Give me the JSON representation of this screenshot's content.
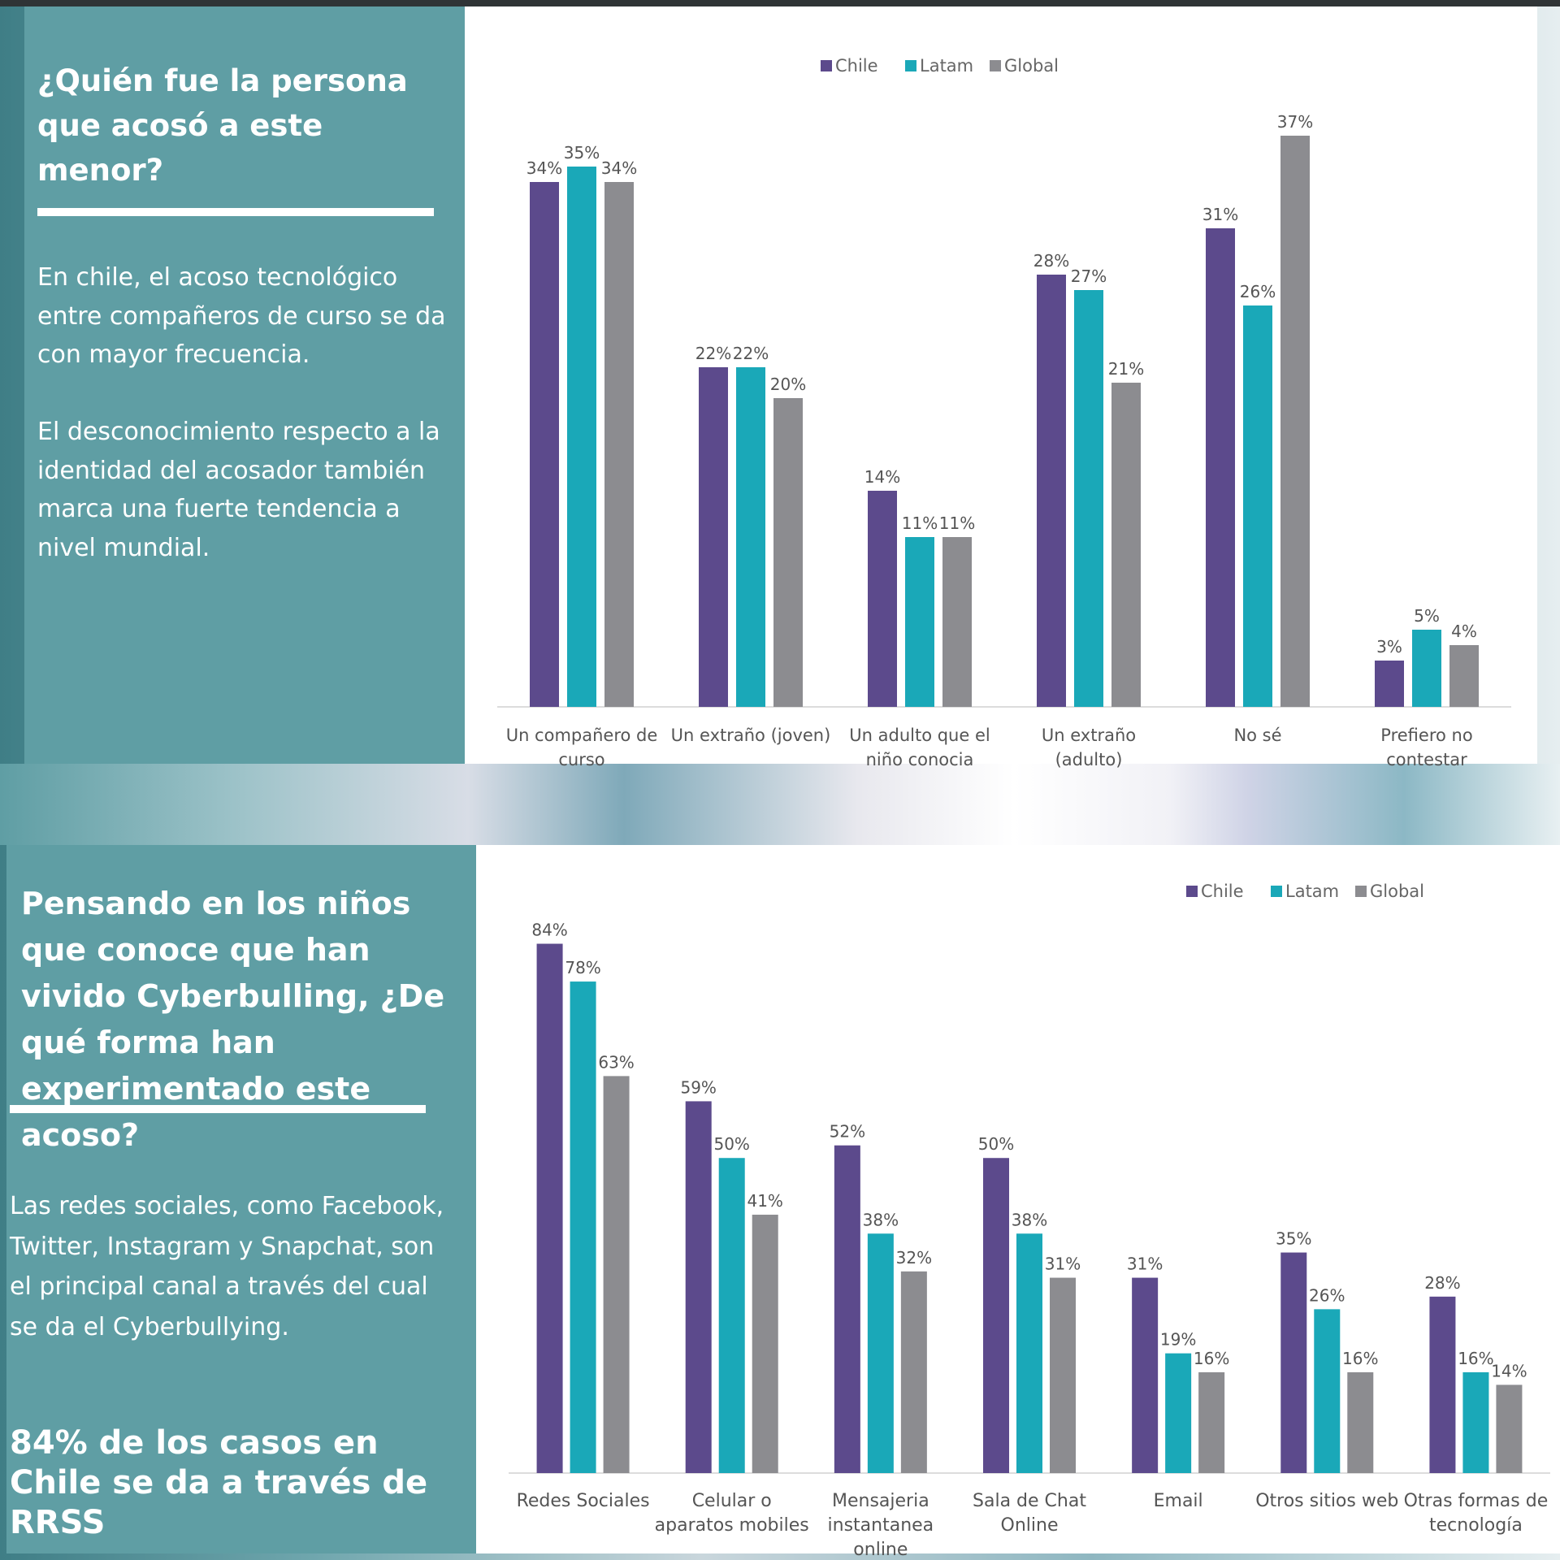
{
  "panel1": {
    "title": "¿Quién fue la persona que acosó a este menor?",
    "paragraph1": "En chile, el acoso tecnológico entre compañeros de curso se da con mayor frecuencia.",
    "paragraph2": "El desconocimiento respecto a la identidad del acosador también marca una fuerte tendencia a nivel mundial."
  },
  "panel2": {
    "title": "Pensando en los niños que conoce que han vivido Cyberbulling, ¿De qué forma han experimentado este acoso?",
    "paragraph1": "Las redes sociales, como Facebook, Twitter, Instagram y Snapchat, son el principal canal a través del cual se da el Cyberbullying.",
    "stat": "84% de los casos en Chile se da a través de RRSS"
  },
  "colors": {
    "chile": "#5c4a8c",
    "latam": "#1aa8b8",
    "global": "#8c8c90",
    "panel": "#5f9ea4"
  },
  "chart_data": [
    {
      "type": "bar",
      "title": "",
      "xlabel": "",
      "ylabel": "",
      "categories": [
        "Un compañero de curso",
        "Un extraño (joven)",
        "Un adulto que el niño conocia",
        "Un extraño (adulto)",
        "No sé",
        "Prefiero no contestar"
      ],
      "series": [
        {
          "name": "Chile",
          "values": [
            34,
            22,
            14,
            28,
            31,
            3
          ],
          "labels": [
            "34%",
            "22%",
            "14%",
            "28%",
            "31%",
            "3%"
          ]
        },
        {
          "name": "Latam",
          "values": [
            35,
            22,
            11,
            27,
            26,
            5
          ],
          "labels": [
            "35%",
            "22%",
            "11%",
            "27%",
            "26%",
            "5%"
          ]
        },
        {
          "name": "Global",
          "values": [
            34,
            20,
            11,
            21,
            37,
            4
          ],
          "labels": [
            "34%",
            "20%",
            "11%",
            "21%",
            "37%",
            "4%"
          ]
        }
      ],
      "ylim": [
        0,
        40
      ],
      "legend": "top",
      "grid": false
    },
    {
      "type": "bar",
      "title": "",
      "xlabel": "",
      "ylabel": "",
      "categories": [
        "Redes Sociales",
        "Celular o aparatos mobiles",
        "Mensajeria instantanea online",
        "Sala de Chat Online",
        "Email",
        "Otros sitios web",
        "Otras formas de tecnología"
      ],
      "series": [
        {
          "name": "Chile",
          "values": [
            84,
            59,
            52,
            50,
            31,
            35,
            28
          ],
          "labels": [
            "84%",
            "59%",
            "52%",
            "50%",
            "31%",
            "35%",
            "28%"
          ]
        },
        {
          "name": "Latam",
          "values": [
            78,
            50,
            38,
            38,
            19,
            26,
            16
          ],
          "labels": [
            "78%",
            "50%",
            "38%",
            "38%",
            "19%",
            "26%",
            "16%"
          ]
        },
        {
          "name": "Global",
          "values": [
            63,
            41,
            32,
            31,
            16,
            16,
            14
          ],
          "labels": [
            "63%",
            "41%",
            "32%",
            "31%",
            "16%",
            "16%",
            "14%"
          ]
        }
      ],
      "ylim": [
        0,
        90
      ],
      "legend": "top-right",
      "grid": false
    }
  ]
}
